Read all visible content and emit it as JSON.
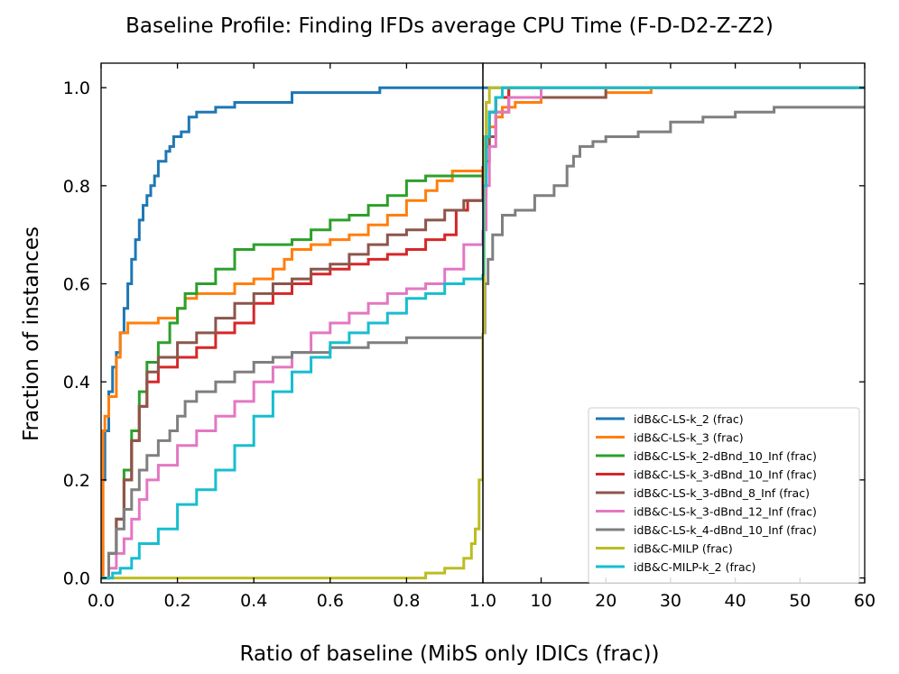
{
  "chart_data": {
    "type": "line",
    "title": "Baseline Profile: Finding IFDs average CPU Time (F-D-D2-Z-Z2)",
    "xlabel": "Ratio of baseline (MibS only IDICs (frac))",
    "ylabel": "Fraction of instances",
    "ylim": [
      -0.01,
      1.05
    ],
    "panels": [
      {
        "name": "left",
        "xlim": [
          0,
          1
        ],
        "scale": "linear",
        "xticks": [
          0.0,
          0.2,
          0.4,
          0.6,
          0.8,
          1.0
        ],
        "xtick_labels": [
          "0.0",
          "0.2",
          "0.4",
          "0.6",
          "0.8",
          "1.0"
        ]
      },
      {
        "name": "right",
        "xlim": [
          1,
          60
        ],
        "scale": "linear",
        "xticks": [
          10,
          20,
          30,
          40,
          50,
          60
        ],
        "xtick_labels": [
          "10",
          "20",
          "30",
          "40",
          "50",
          "60"
        ]
      }
    ],
    "yticks": [
      0.0,
      0.2,
      0.4,
      0.6,
      0.8,
      1.0
    ],
    "ytick_labels": [
      "0.0",
      "0.2",
      "0.4",
      "0.6",
      "0.8",
      "1.0"
    ],
    "legend_position": "lower-right",
    "series": [
      {
        "name": "idB&C-LS-k_2 (frac)",
        "color": "#1f77b4",
        "points": [
          [
            0,
            0
          ],
          [
            0.005,
            0.2
          ],
          [
            0.01,
            0.3
          ],
          [
            0.02,
            0.38
          ],
          [
            0.03,
            0.43
          ],
          [
            0.04,
            0.46
          ],
          [
            0.05,
            0.5
          ],
          [
            0.06,
            0.55
          ],
          [
            0.07,
            0.6
          ],
          [
            0.08,
            0.65
          ],
          [
            0.09,
            0.69
          ],
          [
            0.1,
            0.73
          ],
          [
            0.11,
            0.76
          ],
          [
            0.12,
            0.78
          ],
          [
            0.13,
            0.8
          ],
          [
            0.14,
            0.82
          ],
          [
            0.15,
            0.85
          ],
          [
            0.17,
            0.87
          ],
          [
            0.18,
            0.88
          ],
          [
            0.19,
            0.9
          ],
          [
            0.21,
            0.91
          ],
          [
            0.23,
            0.94
          ],
          [
            0.25,
            0.95
          ],
          [
            0.3,
            0.96
          ],
          [
            0.35,
            0.97
          ],
          [
            0.5,
            0.99
          ],
          [
            0.73,
            1.0
          ],
          [
            1.0,
            1.0
          ],
          [
            60,
            1.0
          ]
        ]
      },
      {
        "name": "idB&C-LS-k_3 (frac)",
        "color": "#ff7f0e",
        "points": [
          [
            0,
            0
          ],
          [
            0.005,
            0.3
          ],
          [
            0.01,
            0.33
          ],
          [
            0.02,
            0.37
          ],
          [
            0.04,
            0.45
          ],
          [
            0.05,
            0.5
          ],
          [
            0.07,
            0.52
          ],
          [
            0.1,
            0.52
          ],
          [
            0.15,
            0.53
          ],
          [
            0.2,
            0.55
          ],
          [
            0.22,
            0.57
          ],
          [
            0.25,
            0.58
          ],
          [
            0.3,
            0.58
          ],
          [
            0.35,
            0.6
          ],
          [
            0.4,
            0.61
          ],
          [
            0.45,
            0.63
          ],
          [
            0.48,
            0.65
          ],
          [
            0.5,
            0.67
          ],
          [
            0.55,
            0.68
          ],
          [
            0.6,
            0.69
          ],
          [
            0.65,
            0.7
          ],
          [
            0.7,
            0.72
          ],
          [
            0.75,
            0.74
          ],
          [
            0.8,
            0.77
          ],
          [
            0.85,
            0.79
          ],
          [
            0.88,
            0.81
          ],
          [
            0.92,
            0.83
          ],
          [
            1.0,
            0.84
          ],
          [
            1.5,
            0.88
          ],
          [
            2,
            0.92
          ],
          [
            3,
            0.94
          ],
          [
            4,
            0.96
          ],
          [
            6,
            0.97
          ],
          [
            10,
            0.98
          ],
          [
            20,
            0.99
          ],
          [
            27,
            1.0
          ],
          [
            60,
            1.0
          ]
        ]
      },
      {
        "name": "idB&C-LS-k_2-dBnd_10_Inf (frac)",
        "color": "#2ca02c",
        "points": [
          [
            0,
            0
          ],
          [
            0.02,
            0.05
          ],
          [
            0.04,
            0.12
          ],
          [
            0.06,
            0.22
          ],
          [
            0.08,
            0.3
          ],
          [
            0.1,
            0.38
          ],
          [
            0.12,
            0.44
          ],
          [
            0.15,
            0.48
          ],
          [
            0.18,
            0.52
          ],
          [
            0.2,
            0.55
          ],
          [
            0.22,
            0.58
          ],
          [
            0.25,
            0.6
          ],
          [
            0.3,
            0.63
          ],
          [
            0.35,
            0.67
          ],
          [
            0.4,
            0.68
          ],
          [
            0.5,
            0.69
          ],
          [
            0.55,
            0.71
          ],
          [
            0.6,
            0.73
          ],
          [
            0.65,
            0.74
          ],
          [
            0.7,
            0.76
          ],
          [
            0.75,
            0.78
          ],
          [
            0.8,
            0.81
          ],
          [
            0.85,
            0.82
          ],
          [
            0.9,
            0.82
          ],
          [
            1.0,
            0.83
          ],
          [
            1.5,
            0.9
          ],
          [
            2,
            0.95
          ],
          [
            3,
            0.98
          ],
          [
            5,
            1.0
          ],
          [
            60,
            1.0
          ]
        ]
      },
      {
        "name": "idB&C-LS-k_3-dBnd_10_Inf (frac)",
        "color": "#d62728",
        "points": [
          [
            0,
            0
          ],
          [
            0.02,
            0.05
          ],
          [
            0.04,
            0.12
          ],
          [
            0.06,
            0.2
          ],
          [
            0.08,
            0.28
          ],
          [
            0.1,
            0.35
          ],
          [
            0.12,
            0.4
          ],
          [
            0.15,
            0.43
          ],
          [
            0.2,
            0.45
          ],
          [
            0.25,
            0.47
          ],
          [
            0.3,
            0.5
          ],
          [
            0.35,
            0.52
          ],
          [
            0.4,
            0.56
          ],
          [
            0.45,
            0.58
          ],
          [
            0.5,
            0.6
          ],
          [
            0.55,
            0.62
          ],
          [
            0.6,
            0.63
          ],
          [
            0.65,
            0.64
          ],
          [
            0.7,
            0.65
          ],
          [
            0.75,
            0.66
          ],
          [
            0.8,
            0.67
          ],
          [
            0.85,
            0.69
          ],
          [
            0.9,
            0.7
          ],
          [
            0.93,
            0.75
          ],
          [
            0.96,
            0.77
          ],
          [
            1.0,
            0.84
          ],
          [
            1.5,
            0.9
          ],
          [
            2,
            0.95
          ],
          [
            3,
            0.98
          ],
          [
            5,
            1.0
          ],
          [
            60,
            1.0
          ]
        ]
      },
      {
        "name": "idB&C-LS-k_3-dBnd_8_Inf (frac)",
        "color": "#8c564b",
        "points": [
          [
            0,
            0
          ],
          [
            0.02,
            0.05
          ],
          [
            0.04,
            0.12
          ],
          [
            0.06,
            0.2
          ],
          [
            0.08,
            0.28
          ],
          [
            0.1,
            0.35
          ],
          [
            0.12,
            0.42
          ],
          [
            0.15,
            0.45
          ],
          [
            0.2,
            0.48
          ],
          [
            0.25,
            0.5
          ],
          [
            0.3,
            0.53
          ],
          [
            0.35,
            0.56
          ],
          [
            0.4,
            0.58
          ],
          [
            0.45,
            0.6
          ],
          [
            0.5,
            0.61
          ],
          [
            0.55,
            0.63
          ],
          [
            0.6,
            0.64
          ],
          [
            0.65,
            0.66
          ],
          [
            0.7,
            0.68
          ],
          [
            0.75,
            0.7
          ],
          [
            0.8,
            0.71
          ],
          [
            0.85,
            0.73
          ],
          [
            0.9,
            0.75
          ],
          [
            0.95,
            0.77
          ],
          [
            1.0,
            0.78
          ],
          [
            1.5,
            0.85
          ],
          [
            2,
            0.9
          ],
          [
            3,
            0.95
          ],
          [
            5,
            0.98
          ],
          [
            20,
            1.0
          ],
          [
            60,
            1.0
          ]
        ]
      },
      {
        "name": "idB&C-LS-k_3-dBnd_12_Inf (frac)",
        "color": "#e377c2",
        "points": [
          [
            0,
            0
          ],
          [
            0.02,
            0.02
          ],
          [
            0.04,
            0.05
          ],
          [
            0.06,
            0.08
          ],
          [
            0.08,
            0.12
          ],
          [
            0.1,
            0.16
          ],
          [
            0.12,
            0.2
          ],
          [
            0.15,
            0.23
          ],
          [
            0.2,
            0.27
          ],
          [
            0.25,
            0.3
          ],
          [
            0.3,
            0.33
          ],
          [
            0.35,
            0.36
          ],
          [
            0.4,
            0.4
          ],
          [
            0.45,
            0.43
          ],
          [
            0.5,
            0.46
          ],
          [
            0.55,
            0.5
          ],
          [
            0.6,
            0.52
          ],
          [
            0.65,
            0.54
          ],
          [
            0.7,
            0.56
          ],
          [
            0.75,
            0.58
          ],
          [
            0.8,
            0.59
          ],
          [
            0.85,
            0.6
          ],
          [
            0.9,
            0.63
          ],
          [
            0.95,
            0.68
          ],
          [
            1.0,
            0.71
          ],
          [
            1.5,
            0.8
          ],
          [
            2,
            0.88
          ],
          [
            3,
            0.95
          ],
          [
            5,
            0.98
          ],
          [
            10,
            1.0
          ],
          [
            60,
            1.0
          ]
        ]
      },
      {
        "name": "idB&C-LS-k_4-dBnd_10_Inf (frac)",
        "color": "#7f7f7f",
        "points": [
          [
            0,
            0
          ],
          [
            0.02,
            0.05
          ],
          [
            0.04,
            0.1
          ],
          [
            0.06,
            0.14
          ],
          [
            0.08,
            0.18
          ],
          [
            0.1,
            0.22
          ],
          [
            0.12,
            0.25
          ],
          [
            0.15,
            0.28
          ],
          [
            0.18,
            0.3
          ],
          [
            0.2,
            0.33
          ],
          [
            0.22,
            0.36
          ],
          [
            0.25,
            0.38
          ],
          [
            0.3,
            0.4
          ],
          [
            0.35,
            0.42
          ],
          [
            0.4,
            0.44
          ],
          [
            0.45,
            0.45
          ],
          [
            0.5,
            0.46
          ],
          [
            0.6,
            0.47
          ],
          [
            0.7,
            0.48
          ],
          [
            0.8,
            0.49
          ],
          [
            0.9,
            0.49
          ],
          [
            1.0,
            0.5
          ],
          [
            1.3,
            0.6
          ],
          [
            1.8,
            0.65
          ],
          [
            2.5,
            0.7
          ],
          [
            4,
            0.74
          ],
          [
            6,
            0.75
          ],
          [
            9,
            0.78
          ],
          [
            12,
            0.8
          ],
          [
            14,
            0.84
          ],
          [
            15,
            0.86
          ],
          [
            16,
            0.88
          ],
          [
            18,
            0.89
          ],
          [
            20,
            0.9
          ],
          [
            25,
            0.91
          ],
          [
            30,
            0.93
          ],
          [
            35,
            0.94
          ],
          [
            40,
            0.95
          ],
          [
            46,
            0.96
          ],
          [
            60,
            0.96
          ]
        ]
      },
      {
        "name": "idB&C-MILP (frac)",
        "color": "#bcbd22",
        "points": [
          [
            0,
            0
          ],
          [
            0.2,
            0
          ],
          [
            0.4,
            0
          ],
          [
            0.6,
            0
          ],
          [
            0.8,
            0
          ],
          [
            0.85,
            0.01
          ],
          [
            0.9,
            0.02
          ],
          [
            0.95,
            0.04
          ],
          [
            0.97,
            0.07
          ],
          [
            0.98,
            0.1
          ],
          [
            0.99,
            0.2
          ],
          [
            1.0,
            0.5
          ],
          [
            1.2,
            0.9
          ],
          [
            1.5,
            0.97
          ],
          [
            2,
            1.0
          ],
          [
            60,
            1.0
          ]
        ]
      },
      {
        "name": "idB&C-MILP-k_2 (frac)",
        "color": "#17becf",
        "points": [
          [
            0,
            0
          ],
          [
            0.03,
            0.01
          ],
          [
            0.05,
            0.02
          ],
          [
            0.08,
            0.04
          ],
          [
            0.1,
            0.07
          ],
          [
            0.15,
            0.1
          ],
          [
            0.2,
            0.15
          ],
          [
            0.25,
            0.18
          ],
          [
            0.3,
            0.22
          ],
          [
            0.35,
            0.27
          ],
          [
            0.4,
            0.33
          ],
          [
            0.45,
            0.38
          ],
          [
            0.5,
            0.42
          ],
          [
            0.55,
            0.45
          ],
          [
            0.6,
            0.48
          ],
          [
            0.65,
            0.5
          ],
          [
            0.7,
            0.52
          ],
          [
            0.75,
            0.54
          ],
          [
            0.8,
            0.57
          ],
          [
            0.85,
            0.58
          ],
          [
            0.9,
            0.6
          ],
          [
            0.95,
            0.61
          ],
          [
            1.0,
            0.62
          ],
          [
            1.1,
            0.8
          ],
          [
            1.5,
            0.9
          ],
          [
            2,
            0.95
          ],
          [
            3,
            0.98
          ],
          [
            4,
            1.0
          ],
          [
            60,
            1.0
          ]
        ]
      }
    ]
  }
}
